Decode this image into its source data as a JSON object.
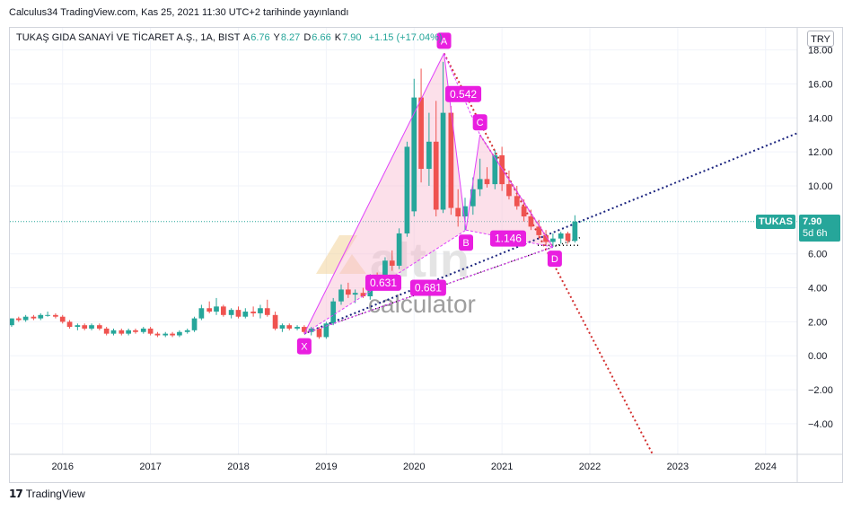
{
  "header": {
    "published": "Calculus34 TradingView.com, Kas 25, 2021 11:30 UTC+2 tarihinde yayınlandı"
  },
  "legend": {
    "symbol": "TUKAŞ GIDA SANAYİ VE TİCARET A.Ş., 1A, BIST",
    "open_label": "A",
    "open": "6.76",
    "high_label": "Y",
    "high": "8.27",
    "low_label": "D",
    "low": "6.66",
    "close_label": "K",
    "close": "7.90",
    "change": "+1.15 (+17.04%)"
  },
  "currency_button": "TRY",
  "price_tag": {
    "symbol": "TUKAS",
    "price": "7.90",
    "countdown": "5d 6h"
  },
  "watermark": {
    "brand": "altın",
    "sub": "calculator"
  },
  "footer": {
    "brand": "TradingView"
  },
  "colors": {
    "up": "#26a69a",
    "down": "#ef5350",
    "pattern_line": "#e040fb",
    "pattern_fill": "#f8bbd0",
    "point_label": "#e91ee0",
    "dotted_blue": "#1a237e",
    "dotted_red": "#d32f2f"
  },
  "chart_data": {
    "type": "candlestick",
    "interval": "1M",
    "xlim": [
      2015.4,
      2024.36
    ],
    "ylim": [
      -5.8,
      19.3
    ],
    "x_ticks": [
      "2016",
      "2017",
      "2018",
      "2019",
      "2020",
      "2021",
      "2022",
      "2023",
      "2024"
    ],
    "y_ticks": [
      "18.00",
      "16.00",
      "14.00",
      "12.00",
      "10.00",
      "6.00",
      "4.00",
      "2.00",
      "0.00",
      "−2.00",
      "−4.00"
    ],
    "last_price": 7.9,
    "candles": [
      {
        "t": 2015.42,
        "o": 1.8,
        "h": 2.2,
        "l": 1.7,
        "c": 2.2
      },
      {
        "t": 2015.5,
        "o": 2.2,
        "h": 2.3,
        "l": 2.0,
        "c": 2.1
      },
      {
        "t": 2015.58,
        "o": 2.1,
        "h": 2.4,
        "l": 2.0,
        "c": 2.3
      },
      {
        "t": 2015.67,
        "o": 2.3,
        "h": 2.4,
        "l": 2.1,
        "c": 2.2
      },
      {
        "t": 2015.75,
        "o": 2.2,
        "h": 2.5,
        "l": 2.1,
        "c": 2.4
      },
      {
        "t": 2015.83,
        "o": 2.4,
        "h": 2.6,
        "l": 2.3,
        "c": 2.4
      },
      {
        "t": 2015.92,
        "o": 2.4,
        "h": 2.5,
        "l": 2.2,
        "c": 2.3
      },
      {
        "t": 2016.0,
        "o": 2.3,
        "h": 2.4,
        "l": 1.9,
        "c": 2.0
      },
      {
        "t": 2016.08,
        "o": 2.0,
        "h": 2.1,
        "l": 1.6,
        "c": 1.7
      },
      {
        "t": 2016.17,
        "o": 1.7,
        "h": 1.9,
        "l": 1.5,
        "c": 1.8
      },
      {
        "t": 2016.25,
        "o": 1.8,
        "h": 1.9,
        "l": 1.5,
        "c": 1.6
      },
      {
        "t": 2016.33,
        "o": 1.6,
        "h": 1.9,
        "l": 1.5,
        "c": 1.8
      },
      {
        "t": 2016.42,
        "o": 1.8,
        "h": 1.9,
        "l": 1.5,
        "c": 1.6
      },
      {
        "t": 2016.5,
        "o": 1.6,
        "h": 1.7,
        "l": 1.2,
        "c": 1.3
      },
      {
        "t": 2016.58,
        "o": 1.3,
        "h": 1.6,
        "l": 1.2,
        "c": 1.5
      },
      {
        "t": 2016.67,
        "o": 1.5,
        "h": 1.6,
        "l": 1.2,
        "c": 1.3
      },
      {
        "t": 2016.75,
        "o": 1.3,
        "h": 1.6,
        "l": 1.2,
        "c": 1.5
      },
      {
        "t": 2016.83,
        "o": 1.5,
        "h": 1.6,
        "l": 1.3,
        "c": 1.4
      },
      {
        "t": 2016.92,
        "o": 1.4,
        "h": 1.7,
        "l": 1.3,
        "c": 1.6
      },
      {
        "t": 2017.0,
        "o": 1.6,
        "h": 1.7,
        "l": 1.2,
        "c": 1.3
      },
      {
        "t": 2017.08,
        "o": 1.3,
        "h": 1.4,
        "l": 1.1,
        "c": 1.2
      },
      {
        "t": 2017.17,
        "o": 1.2,
        "h": 1.4,
        "l": 1.1,
        "c": 1.3
      },
      {
        "t": 2017.25,
        "o": 1.3,
        "h": 1.4,
        "l": 1.1,
        "c": 1.2
      },
      {
        "t": 2017.33,
        "o": 1.2,
        "h": 1.5,
        "l": 1.1,
        "c": 1.4
      },
      {
        "t": 2017.42,
        "o": 1.4,
        "h": 1.6,
        "l": 1.3,
        "c": 1.5
      },
      {
        "t": 2017.5,
        "o": 1.5,
        "h": 2.3,
        "l": 1.4,
        "c": 2.2
      },
      {
        "t": 2017.58,
        "o": 2.2,
        "h": 3.0,
        "l": 2.1,
        "c": 2.8
      },
      {
        "t": 2017.67,
        "o": 2.8,
        "h": 3.2,
        "l": 2.5,
        "c": 2.6
      },
      {
        "t": 2017.75,
        "o": 2.6,
        "h": 3.4,
        "l": 2.4,
        "c": 2.9
      },
      {
        "t": 2017.83,
        "o": 2.9,
        "h": 3.0,
        "l": 2.3,
        "c": 2.4
      },
      {
        "t": 2017.92,
        "o": 2.4,
        "h": 2.8,
        "l": 2.2,
        "c": 2.7
      },
      {
        "t": 2018.0,
        "o": 2.7,
        "h": 2.9,
        "l": 2.2,
        "c": 2.3
      },
      {
        "t": 2018.08,
        "o": 2.3,
        "h": 2.8,
        "l": 2.2,
        "c": 2.6
      },
      {
        "t": 2018.17,
        "o": 2.6,
        "h": 2.9,
        "l": 2.3,
        "c": 2.5
      },
      {
        "t": 2018.25,
        "o": 2.5,
        "h": 3.0,
        "l": 2.2,
        "c": 2.8
      },
      {
        "t": 2018.33,
        "o": 2.8,
        "h": 3.3,
        "l": 2.3,
        "c": 2.4
      },
      {
        "t": 2018.42,
        "o": 2.4,
        "h": 2.6,
        "l": 1.5,
        "c": 1.6
      },
      {
        "t": 2018.5,
        "o": 1.6,
        "h": 1.9,
        "l": 1.4,
        "c": 1.8
      },
      {
        "t": 2018.58,
        "o": 1.8,
        "h": 1.9,
        "l": 1.5,
        "c": 1.6
      },
      {
        "t": 2018.67,
        "o": 1.6,
        "h": 1.8,
        "l": 1.5,
        "c": 1.7
      },
      {
        "t": 2018.75,
        "o": 1.7,
        "h": 1.8,
        "l": 1.3,
        "c": 1.4
      },
      {
        "t": 2018.83,
        "o": 1.4,
        "h": 1.7,
        "l": 1.2,
        "c": 1.6
      },
      {
        "t": 2018.92,
        "o": 1.6,
        "h": 1.7,
        "l": 1.0,
        "c": 1.1
      },
      {
        "t": 2019.0,
        "o": 1.1,
        "h": 2.0,
        "l": 1.0,
        "c": 1.9
      },
      {
        "t": 2019.08,
        "o": 1.9,
        "h": 3.4,
        "l": 1.8,
        "c": 3.2
      },
      {
        "t": 2019.17,
        "o": 3.2,
        "h": 4.2,
        "l": 3.0,
        "c": 3.9
      },
      {
        "t": 2019.25,
        "o": 3.9,
        "h": 4.3,
        "l": 3.4,
        "c": 3.6
      },
      {
        "t": 2019.33,
        "o": 3.6,
        "h": 3.9,
        "l": 3.1,
        "c": 3.7
      },
      {
        "t": 2019.42,
        "o": 3.7,
        "h": 4.0,
        "l": 3.4,
        "c": 3.5
      },
      {
        "t": 2019.5,
        "o": 3.5,
        "h": 4.8,
        "l": 3.3,
        "c": 4.6
      },
      {
        "t": 2019.58,
        "o": 4.6,
        "h": 4.9,
        "l": 4.0,
        "c": 4.2
      },
      {
        "t": 2019.67,
        "o": 4.2,
        "h": 5.8,
        "l": 4.0,
        "c": 5.6
      },
      {
        "t": 2019.75,
        "o": 5.6,
        "h": 6.2,
        "l": 5.0,
        "c": 5.3
      },
      {
        "t": 2019.83,
        "o": 5.3,
        "h": 7.5,
        "l": 5.1,
        "c": 7.2
      },
      {
        "t": 2019.92,
        "o": 7.2,
        "h": 12.6,
        "l": 7.0,
        "c": 12.3
      },
      {
        "t": 2020.0,
        "o": 8.5,
        "h": 16.3,
        "l": 8.2,
        "c": 15.2
      },
      {
        "t": 2020.08,
        "o": 15.2,
        "h": 16.9,
        "l": 10.2,
        "c": 11.0
      },
      {
        "t": 2020.17,
        "o": 11.0,
        "h": 14.3,
        "l": 10.0,
        "c": 12.6
      },
      {
        "t": 2020.25,
        "o": 12.6,
        "h": 15.0,
        "l": 8.2,
        "c": 8.6
      },
      {
        "t": 2020.33,
        "o": 8.6,
        "h": 17.3,
        "l": 8.4,
        "c": 14.3
      },
      {
        "t": 2020.42,
        "o": 14.3,
        "h": 14.7,
        "l": 8.3,
        "c": 8.7
      },
      {
        "t": 2020.5,
        "o": 8.7,
        "h": 9.8,
        "l": 7.6,
        "c": 8.2
      },
      {
        "t": 2020.58,
        "o": 8.2,
        "h": 9.3,
        "l": 7.4,
        "c": 8.8
      },
      {
        "t": 2020.67,
        "o": 8.8,
        "h": 10.5,
        "l": 8.3,
        "c": 9.8
      },
      {
        "t": 2020.75,
        "o": 9.8,
        "h": 11.6,
        "l": 9.4,
        "c": 10.4
      },
      {
        "t": 2020.83,
        "o": 10.4,
        "h": 11.1,
        "l": 9.9,
        "c": 10.1
      },
      {
        "t": 2020.92,
        "o": 10.1,
        "h": 12.1,
        "l": 9.8,
        "c": 11.8
      },
      {
        "t": 2021.0,
        "o": 11.8,
        "h": 12.3,
        "l": 9.7,
        "c": 10.1
      },
      {
        "t": 2021.08,
        "o": 10.1,
        "h": 10.9,
        "l": 9.2,
        "c": 9.4
      },
      {
        "t": 2021.17,
        "o": 9.4,
        "h": 10.0,
        "l": 8.6,
        "c": 8.8
      },
      {
        "t": 2021.25,
        "o": 8.8,
        "h": 9.2,
        "l": 7.9,
        "c": 8.2
      },
      {
        "t": 2021.33,
        "o": 8.2,
        "h": 8.6,
        "l": 7.4,
        "c": 7.6
      },
      {
        "t": 2021.42,
        "o": 7.6,
        "h": 8.0,
        "l": 6.9,
        "c": 7.1
      },
      {
        "t": 2021.5,
        "o": 7.1,
        "h": 7.4,
        "l": 6.5,
        "c": 6.7
      },
      {
        "t": 2021.58,
        "o": 6.7,
        "h": 7.2,
        "l": 6.4,
        "c": 6.9
      },
      {
        "t": 2021.67,
        "o": 6.9,
        "h": 7.3,
        "l": 6.6,
        "c": 7.2
      },
      {
        "t": 2021.75,
        "o": 7.2,
        "h": 7.3,
        "l": 6.6,
        "c": 6.76
      },
      {
        "t": 2021.83,
        "o": 6.76,
        "h": 8.27,
        "l": 6.66,
        "c": 7.9
      }
    ],
    "harmonic_pattern": {
      "points": [
        {
          "label": "X",
          "t": 2018.75,
          "v": 1.3
        },
        {
          "label": "A",
          "t": 2020.34,
          "v": 17.8
        },
        {
          "label": "B",
          "t": 2020.59,
          "v": 7.4
        },
        {
          "label": "C",
          "t": 2020.75,
          "v": 13.0
        },
        {
          "label": "D",
          "t": 2021.58,
          "v": 6.4
        }
      ],
      "ratios": [
        {
          "text": "0.542",
          "t": 2020.56,
          "v": 15.4
        },
        {
          "text": "0.631",
          "t": 2019.65,
          "v": 4.3
        },
        {
          "text": "0.681",
          "t": 2020.16,
          "v": 4.0
        },
        {
          "text": "1.146",
          "t": 2021.07,
          "v": 6.9
        }
      ]
    }
  }
}
